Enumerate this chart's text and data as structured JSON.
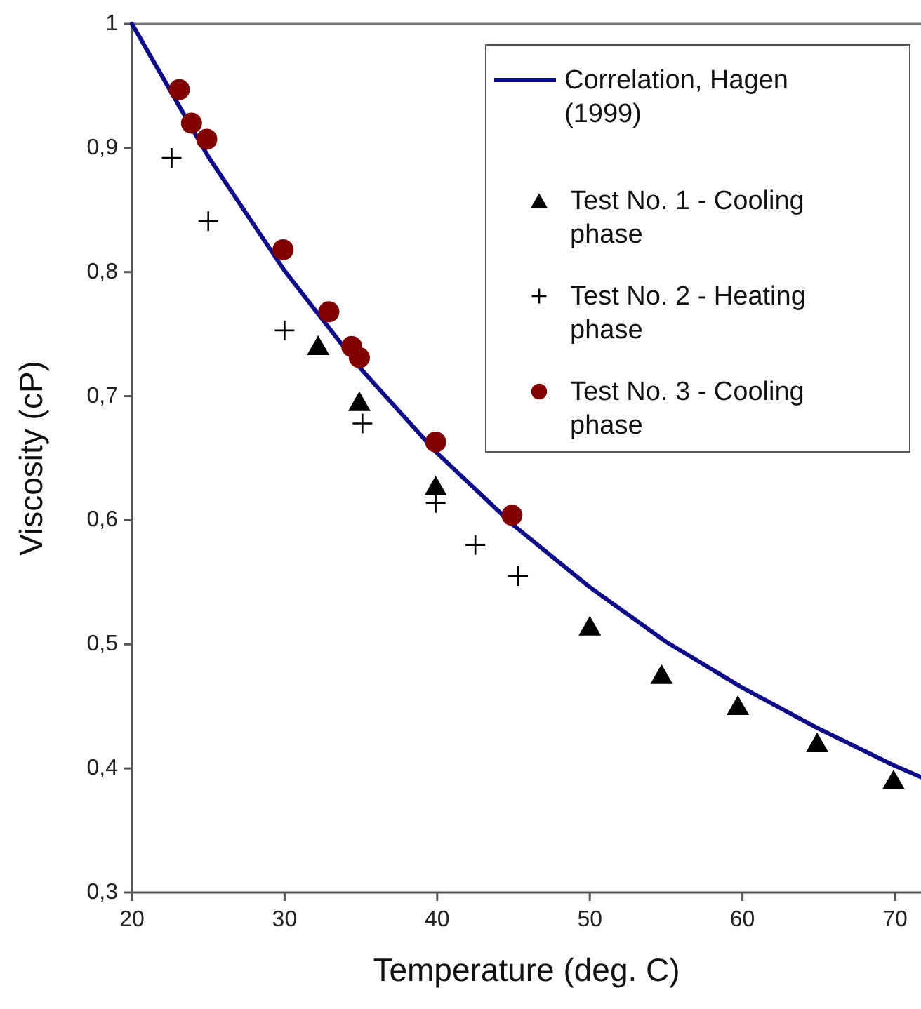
{
  "chart_data": {
    "type": "scatter",
    "xlabel": "Temperature (deg. C)",
    "ylabel": "Viscosity (cP)",
    "xlim": [
      20,
      71.7
    ],
    "ylim": [
      0.3,
      1
    ],
    "xticks": [
      20,
      30,
      40,
      50,
      60,
      70
    ],
    "yticks": [
      {
        "value": 0.3,
        "label": "0,3"
      },
      {
        "value": 0.4,
        "label": "0,4"
      },
      {
        "value": 0.5,
        "label": "0,5"
      },
      {
        "value": 0.6,
        "label": "0,6"
      },
      {
        "value": 0.7,
        "label": "0,7"
      },
      {
        "value": 0.8,
        "label": "0,8"
      },
      {
        "value": 0.9,
        "label": "0,9"
      },
      1
    ],
    "grid": false,
    "legend": "top right",
    "series": [
      {
        "name": "Correlation, Hagen (1999)",
        "type": "line",
        "color": "#0d0d8a",
        "marker": "none",
        "line_style": "solid",
        "x": [
          20,
          25,
          30,
          35,
          40,
          45,
          50,
          55,
          60,
          65,
          70,
          71.7
        ],
        "values": [
          1.0,
          0.893,
          0.801,
          0.722,
          0.654,
          0.596,
          0.546,
          0.502,
          0.465,
          0.432,
          0.402,
          0.393
        ]
      },
      {
        "name": "Test No. 1 - Cooling phase",
        "color": "#000000",
        "marker": "triangle",
        "x": [
          32.2,
          34.9,
          39.9,
          50.0,
          54.7,
          59.7,
          64.9,
          69.9
        ],
        "values": [
          0.741,
          0.696,
          0.628,
          0.515,
          0.476,
          0.451,
          0.421,
          0.391
        ]
      },
      {
        "name": "Test No. 2 - Heating phase",
        "color": "#000000",
        "marker": "cross",
        "x": [
          22.6,
          25.0,
          30.0,
          35.1,
          39.9,
          42.5,
          45.3
        ],
        "values": [
          0.892,
          0.841,
          0.753,
          0.678,
          0.614,
          0.58,
          0.555
        ]
      },
      {
        "name": "Test No. 3 - Cooling phase",
        "color": "#800000",
        "marker": "circle",
        "x": [
          23.1,
          23.9,
          24.9,
          29.9,
          32.9,
          34.4,
          34.9,
          39.9,
          44.9
        ],
        "values": [
          0.947,
          0.92,
          0.907,
          0.818,
          0.768,
          0.74,
          0.731,
          0.663,
          0.604
        ]
      }
    ]
  }
}
